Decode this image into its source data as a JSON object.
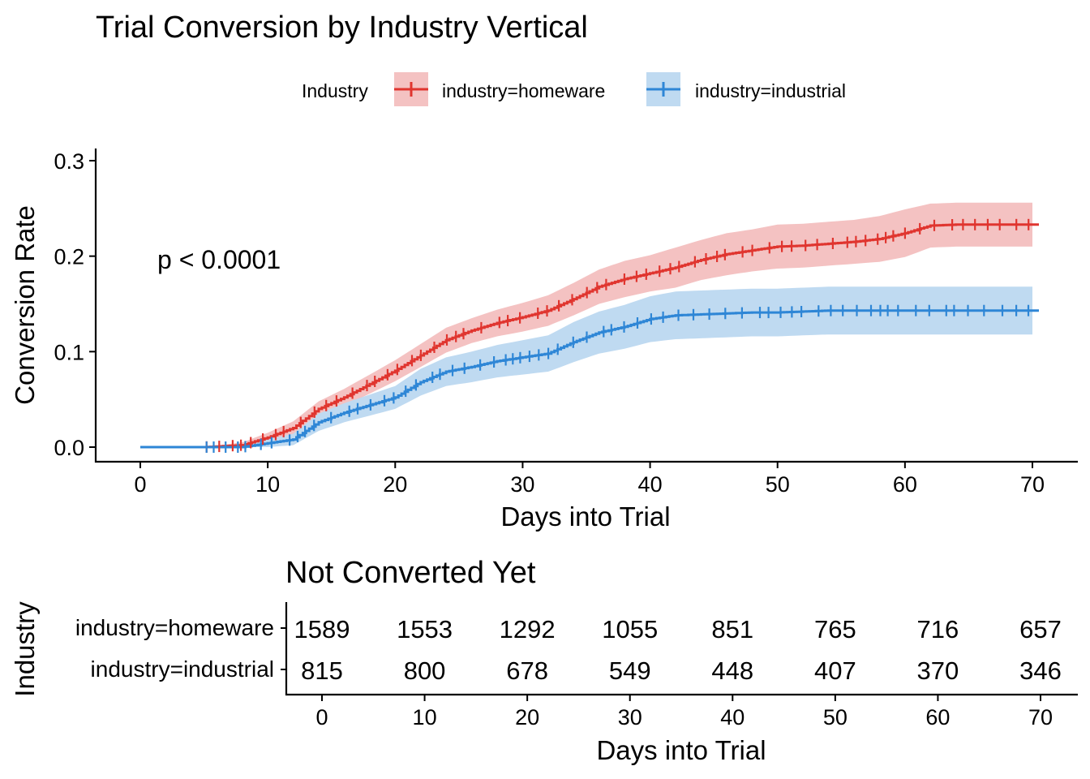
{
  "colors": {
    "homeware": "#E0352F",
    "industrial": "#2E86D6",
    "homeware_band": "#F4C2C2",
    "industrial_band": "#BFDAF1"
  },
  "chart_data": [
    {
      "type": "line",
      "title": "Trial Conversion by Industry Vertical",
      "xlabel": "Days into Trial",
      "ylabel": "Conversion Rate",
      "xlim": [
        0,
        70
      ],
      "ylim": [
        0,
        0.3
      ],
      "x_ticks": [
        0,
        10,
        20,
        30,
        40,
        50,
        60,
        70
      ],
      "y_ticks": [
        "0.0",
        "0.1",
        "0.2",
        "0.3"
      ],
      "grid": false,
      "legend_position": "top",
      "legend_title": "Industry",
      "annotation": "p < 0.0001",
      "series": [
        {
          "name": "industry=homeware",
          "x": [
            0,
            5,
            8,
            10,
            12,
            14,
            16,
            18,
            20,
            22,
            24,
            26,
            28,
            30,
            32,
            34,
            36,
            38,
            40,
            42,
            44,
            46,
            48,
            50,
            52,
            54,
            56,
            58,
            60,
            62,
            64,
            66,
            68,
            70
          ],
          "y": [
            0,
            0,
            0.002,
            0.01,
            0.02,
            0.04,
            0.052,
            0.066,
            0.08,
            0.096,
            0.112,
            0.122,
            0.13,
            0.136,
            0.143,
            0.155,
            0.168,
            0.176,
            0.182,
            0.188,
            0.196,
            0.202,
            0.206,
            0.21,
            0.211,
            0.213,
            0.215,
            0.218,
            0.224,
            0.232,
            0.233,
            0.233,
            0.233,
            0.233
          ],
          "lower": [
            0,
            0,
            0,
            0.005,
            0.013,
            0.032,
            0.043,
            0.056,
            0.069,
            0.084,
            0.099,
            0.109,
            0.116,
            0.121,
            0.127,
            0.138,
            0.15,
            0.157,
            0.163,
            0.167,
            0.175,
            0.18,
            0.184,
            0.187,
            0.188,
            0.19,
            0.192,
            0.194,
            0.199,
            0.209,
            0.21,
            0.21,
            0.21,
            0.21
          ],
          "upper": [
            0,
            0,
            0.005,
            0.015,
            0.027,
            0.048,
            0.061,
            0.076,
            0.091,
            0.108,
            0.125,
            0.135,
            0.144,
            0.151,
            0.159,
            0.172,
            0.186,
            0.195,
            0.201,
            0.209,
            0.217,
            0.224,
            0.228,
            0.233,
            0.234,
            0.236,
            0.238,
            0.242,
            0.249,
            0.255,
            0.256,
            0.256,
            0.256,
            0.256
          ]
        },
        {
          "name": "industry=industrial",
          "x": [
            0,
            5,
            8,
            10,
            12,
            14,
            16,
            18,
            20,
            22,
            24,
            26,
            28,
            30,
            32,
            34,
            36,
            38,
            40,
            42,
            44,
            46,
            48,
            50,
            52,
            54,
            56,
            58,
            60,
            62,
            64,
            66,
            68,
            70
          ],
          "y": [
            0,
            0,
            0,
            0.004,
            0.008,
            0.026,
            0.036,
            0.044,
            0.052,
            0.068,
            0.079,
            0.084,
            0.09,
            0.094,
            0.098,
            0.11,
            0.12,
            0.126,
            0.134,
            0.138,
            0.139,
            0.14,
            0.141,
            0.141,
            0.142,
            0.143,
            0.143,
            0.143,
            0.143,
            0.143,
            0.143,
            0.143,
            0.143,
            0.143
          ],
          "lower": [
            0,
            0,
            0,
            0,
            0.002,
            0.017,
            0.026,
            0.033,
            0.04,
            0.054,
            0.064,
            0.068,
            0.073,
            0.076,
            0.079,
            0.089,
            0.098,
            0.103,
            0.11,
            0.113,
            0.114,
            0.115,
            0.116,
            0.116,
            0.117,
            0.118,
            0.118,
            0.118,
            0.118,
            0.118,
            0.118,
            0.118,
            0.118,
            0.118
          ],
          "upper": [
            0,
            0,
            0.002,
            0.008,
            0.014,
            0.035,
            0.046,
            0.055,
            0.064,
            0.082,
            0.094,
            0.1,
            0.107,
            0.112,
            0.117,
            0.131,
            0.142,
            0.149,
            0.158,
            0.163,
            0.164,
            0.165,
            0.166,
            0.166,
            0.167,
            0.168,
            0.168,
            0.168,
            0.168,
            0.168,
            0.168,
            0.168,
            0.168,
            0.168
          ]
        }
      ]
    },
    {
      "type": "table",
      "title": "Not Converted Yet",
      "xlabel": "Days into Trial",
      "ylabel": "Industry",
      "x_ticks": [
        0,
        10,
        20,
        30,
        40,
        50,
        60,
        70
      ],
      "rows": [
        {
          "name": "industry=homeware",
          "values": [
            1589,
            1553,
            1292,
            1055,
            851,
            765,
            716,
            657
          ]
        },
        {
          "name": "industry=industrial",
          "values": [
            815,
            800,
            678,
            549,
            448,
            407,
            370,
            346
          ]
        }
      ]
    }
  ]
}
